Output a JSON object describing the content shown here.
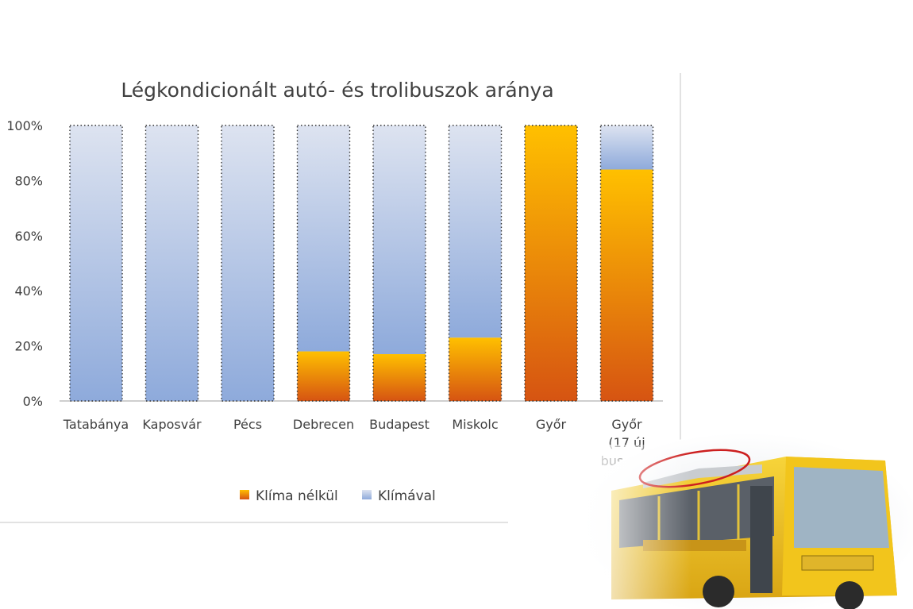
{
  "chart_data": {
    "type": "bar",
    "stacked": true,
    "percent": true,
    "title": "Légkondicionált autó- és trolibuszok aránya",
    "xlabel": "",
    "ylabel": "",
    "ylim": [
      0,
      100
    ],
    "yticks": [
      "0%",
      "20%",
      "40%",
      "60%",
      "80%",
      "100%"
    ],
    "categories": [
      [
        "Tatabánya"
      ],
      [
        "Kaposvár"
      ],
      [
        "Pécs"
      ],
      [
        "Debrecen"
      ],
      [
        "Budapest"
      ],
      [
        "Miskolc"
      ],
      [
        "Győr"
      ],
      [
        "Győr",
        "(17 új",
        "busszal)"
      ]
    ],
    "series": [
      {
        "name": "Klíma nélkül",
        "values": [
          0,
          0,
          0,
          18,
          17,
          23,
          100,
          84
        ]
      },
      {
        "name": "Klímával",
        "values": [
          100,
          100,
          100,
          82,
          83,
          77,
          0,
          16
        ]
      }
    ],
    "legend_position": "bottom",
    "grid": false
  },
  "colors": {
    "no_ac_top": "#ffc000",
    "no_ac_bottom": "#d65412",
    "ac_top": "#dde3f0",
    "ac_bottom": "#8eaadb",
    "text": "#404040",
    "axis": "#bfbfbf"
  },
  "photo": {
    "description_icon": "yellow-trolleybus-photo"
  }
}
